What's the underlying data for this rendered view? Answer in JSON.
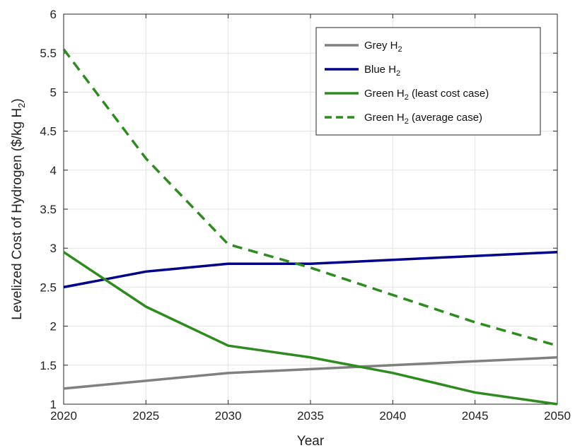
{
  "chart_data": {
    "type": "line",
    "xlabel": "Year",
    "ylabel": "Levelized Cost of Hydrogen ($/kg H",
    "ylabel_sub": "2",
    "ylabel_close": ")",
    "xlim": [
      2020,
      2050
    ],
    "ylim": [
      1,
      6
    ],
    "xticks": [
      2020,
      2025,
      2030,
      2035,
      2040,
      2045,
      2050
    ],
    "yticks": [
      1,
      1.5,
      2,
      2.5,
      3,
      3.5,
      4,
      4.5,
      5,
      5.5,
      6
    ],
    "yticklabels": [
      "1",
      "1.5",
      "2",
      "2.5",
      "3",
      "3.5",
      "4",
      "4.5",
      "5",
      "5.5",
      "6"
    ],
    "grid": true,
    "legend_position": "top-right",
    "x": [
      2020,
      2025,
      2030,
      2035,
      2040,
      2045,
      2050
    ],
    "series": [
      {
        "name": "Grey H",
        "sub": "2",
        "suffix": "",
        "color": "#808080",
        "dash": "solid",
        "values": [
          1.2,
          1.3,
          1.4,
          1.45,
          1.5,
          1.55,
          1.6
        ]
      },
      {
        "name": "Blue H",
        "sub": "2",
        "suffix": "",
        "color": "#00008B",
        "dash": "solid",
        "values": [
          2.5,
          2.7,
          2.8,
          2.8,
          2.85,
          2.9,
          2.95
        ]
      },
      {
        "name": "Green H",
        "sub": "2",
        "suffix": " (least cost case)",
        "color": "#2E8B1F",
        "dash": "solid",
        "values": [
          2.95,
          2.25,
          1.75,
          1.6,
          1.4,
          1.15,
          1.0
        ]
      },
      {
        "name": "Green H",
        "sub": "2",
        "suffix": " (average case)",
        "color": "#2E8B1F",
        "dash": "dashed",
        "values": [
          5.55,
          4.15,
          3.05,
          2.75,
          2.4,
          2.05,
          1.75
        ]
      }
    ]
  }
}
